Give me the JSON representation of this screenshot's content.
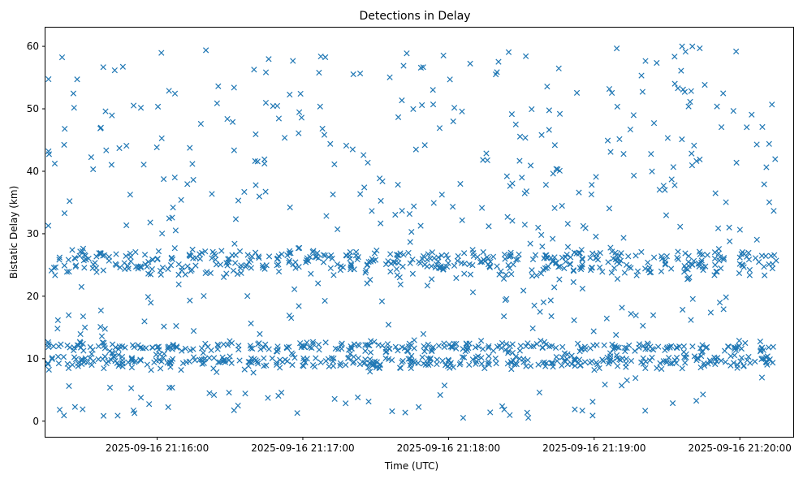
{
  "chart_data": {
    "type": "scatter",
    "title": "Detections in Delay",
    "xlabel": "Time (UTC)",
    "ylabel": "Bistatic Delay (km)",
    "marker": "x",
    "grid": false,
    "xlim": [
      "2025-09-16 21:15:14",
      "2025-09-16 21:20:22"
    ],
    "ylim": [
      -2.5,
      63
    ],
    "x_ticks": [
      "2025-09-16 21:16:00",
      "2025-09-16 21:17:00",
      "2025-09-16 21:18:00",
      "2025-09-16 21:19:00",
      "2025-09-16 21:20:00"
    ],
    "y_ticks": [
      0,
      10,
      20,
      30,
      40,
      50,
      60
    ],
    "series": [
      {
        "color": "#1f77b4",
        "x_start": "2025-09-16 21:15:15",
        "x_end": "2025-09-16 21:20:15",
        "bands": [
          {
            "y": 9.5,
            "spread": 1.0,
            "fraction": 0.22
          },
          {
            "y": 11.8,
            "spread": 0.7,
            "fraction": 0.16
          },
          {
            "y": 24.8,
            "spread": 1.4,
            "fraction": 0.18
          },
          {
            "y": 26.4,
            "spread": 0.9,
            "fraction": 0.12
          }
        ],
        "background_range": [
          0.5,
          60
        ],
        "point_count": 1500
      }
    ]
  }
}
